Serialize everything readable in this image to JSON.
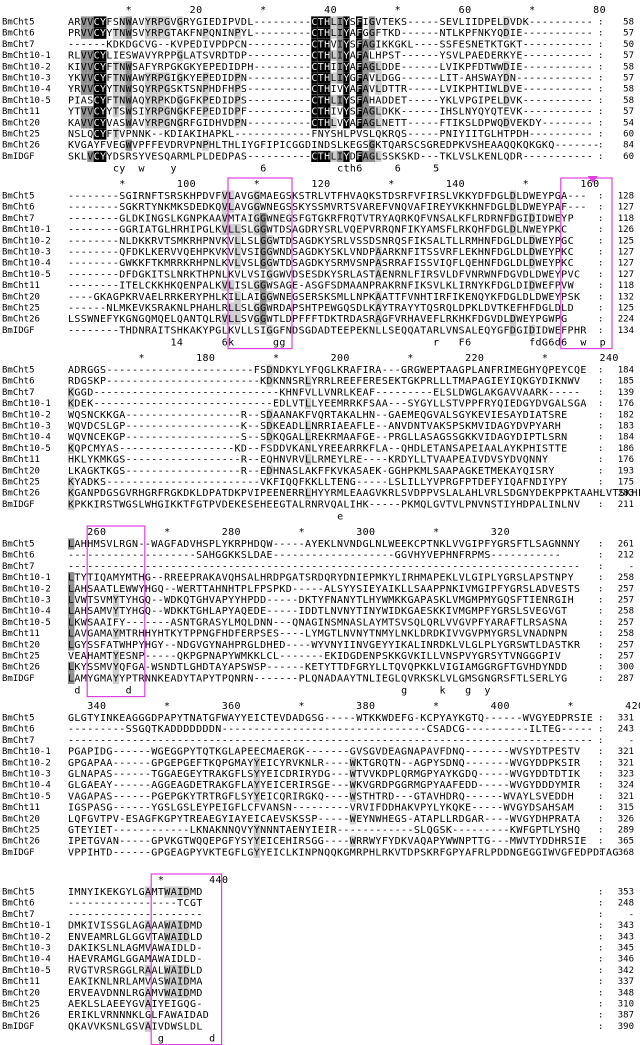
{
  "names": [
    "BmCht5",
    "BmCht6",
    "BmCht7",
    "BmCht10-1",
    "BmCht10-2",
    "BmCht10-3",
    "BmCht10-4",
    "BmCht10-5",
    "BmCht11",
    "BmCht20",
    "BmCht25",
    "BmCht26",
    "BmIDGF"
  ],
  "separator": ":",
  "blocks": [
    {
      "ruler": "         *         20         *         40         *         60         *         80",
      "rows": [
        "ARVVCYFSNWAVYRPGVGRYGIEDIPVDL---------CTHLIYSFIGVTEKS-----SEVLIIDPELDVDK----------",
        "PRVVCYYTNWSVYRPGTAKFNPQNINPYL---------CTHLIYAFGGFTKD------NTLKPFNKYQDIE-----------",
        "------KDKDGCVG--KVPEDIVPDPCN----------CTHVIYSFAGIKKGKL----SSFESNETKTGKT-----------",
        "RLVVCYLIESWAVYRPPGLATSVRDTDP----------CTHLIYAFALHPST------YSVLPAEDERKYE-----------",
        "KIVVCYFTNWSAFYRPGKGKYEPEDIDPH---------CTHIIYAFAGLDDE------LVIKPFDTWWDIE-----------",
        "YKVVCYFTNWAWYRPGIGKYEPEDIDPN----------CTHLIYGFAVLDGG------LIT-AHSWAYDN------------",
        "YRVVCYYTNWSQYRPGSKTSNPHDFHPS----------CTHIVYAFAVLDTTR-----LVIKPHTIWLDVE-----------",
        "PIASCYFTNWAQYRPKDGGFKPEDIDPS----------CTHLIYSFAHADDET-----YKLVPGIPELDVK-----------",
        "YTVVCYYTSWSIYRPGNGKFEPEDIDPF----------CTHIVYSFAGLDKK------IHSLNYQYQTEVK-----------",
        "KAVVCYVASWAVYRPGNGRFGIDHVDPN----------CTHLVYAFAGLNETT-----FTIKSLDPWQDVEKDY--------",
        "NSLQCYFTVPNNK--KDIAKIHAPKL------------FNYSHLPVSLQKRQS-----PNIYIITGLHTPDH----------",
        "KVGAYFVEGWVPFFEVDRVPNPHLTHLIYGFIPICGGDINDSLKEGSGKTQARSCSGREDPKVSHEAAQQKQKGKQ-------",
        "SKLVCYYDSRSYVESQARMLPLDEDPAS----------CTHLIYDFAGLSSKSKD---TKLVSLKENLQDR-----------"
      ],
      "ends": [
        58,
        57,
        50,
        57,
        58,
        57,
        58,
        58,
        57,
        54,
        60,
        84,
        60
      ],
      "consensus": "       cy  w    y             6           cth6     6     5"
    },
    {
      "ruler": "        *        100         *        120         *        140         *        160",
      "rows": [
        "--------SGIRNFTSRSKHPDVFVLAVGGMAEGSKSTRLVTFHVAQKSTDSRFVFIRSLVKKYDFDGLDLDWEYPGA---",
        "--------SGKRTYNKMKSDEDKQVLAVGGWNEGSSKYSSMVRTSVAREFVNQVAFIREYVKKHNFDGLDLDWEYPAF---",
        "--------GLDKINGSLKGNPKAAVMTAIGGWNEGSFGTGKRFRQTVTRYAQRKQFVNSALKFLRDRNFDGIDIDWEYP",
        "--------GGRIATGLHRHIPGLKVLLSLGGWTDSAGDRYSRLVQEPVRRQNFIKYAMSFLRKQHFDGLDLNWEYPKC",
        "--------NLDKKRVTSMKRHPNVKVLLSLGGWTDSAGDKYSRLVSSDSNRQSFIKSALTLLRMHNFDGLDLDWEYPGC",
        "--------QFDKLKERVVQEHPKVKVLVSIGGWNDSAGDKYSKLVNDPAARKNFITSSVRFLEKHNFDGLDLDWEYPKC",
        "--------GWKKFTKMRRKRHPNLKVLVSLGGWTDSAGDKYSRMVSNPASRRAFISSVIQFLQEHNFDGLDLDWEYPKC",
        "--------DFDGKITSLNRKTHPNLKVLVSIGGWVDSESDKYSRLASTAENRNLFIRSVLDFVNRWNFDGVDLDWEYPVC",
        "--------ITELCKKHKQENPALKVLISLGGWSAGE-ASGFSDMAANPRAKRNFIKSVLKLIRNYKFDGLDIDWEFPVW",
        "----GKAGPKRVAELRRKERYPHLKILLAIGGWNEGSERSKSMLLNPKAATTFVNHTIRFIKENQYKFDGLDLDWEYPSK",
        "------NLMKEVKSRAKNLPHAHLRLLSLGGWRDAPSHTPEWGQSDLKAYTRAYYTQSRQLDPKLDVTKEFHFDGLDLD",
        "LSSWNEFYKGNGQMQELQANTQLRVLLSVGGWTLDPFFFTDKTRDASRAGFVRHAVEFLRKHKFDGVDLDWEYPGWPG",
        "--------THDNRAITSHKAKYPGLKVLLSIGGFNDSGDADTEEPEKNLLSEQQATARLVNSALEQYGFDGIDIDWEFPHR"
      ],
      "ends": [
        128,
        127,
        118,
        126,
        125,
        127,
        127,
        127,
        118,
        132,
        125,
        224,
        134
      ],
      "consensus": "                14      6k      gg                       r   F6         fdG6d6  w  p"
    },
    {
      "ruler": "           *        180         *        200         *        220         *        240",
      "rows": [
        "ADRGGS-----------------------FSDNDKYLYFQGLKRAFIRA---GRGWEPTAAGPLANFRIMEGHYQPEYCQE",
        "RDGSKP------------------------KDKNNSRLYRRLREEFERESEKTGKPRLLLTMAPAGIEYIQKGYDIKNWV",
        "KGGD-----------------------------KHNFVLLVNRLKEAF---------ELSLDWGLAKGAVVAARK-----",
        "KDEK----------------------------EDLVTLLYEEMRRKFSAA---SYGYLLSTVPPFRYQIEDGYDVGALSGA",
        "WQSNCKKGA------------------R--SDAANAKFVQRTAKALHN--GAEMEQGVALSGYKEVIESAYDIATSRE",
        "WQVDCSLGP------------------K--SDKEADLLNRRIAEAFLE--ANVDNTVAKSPSKMVIDAGYDVPYARH",
        "WQVNCEKGP------------------S--SDKQGALLREKRMAAFGE--PRGLLASAGSSGKKVIDAGYDIPTLSRN",
        "KQPCMYAS------------------KD--FSDDVKANLYREEARRKFLA--QHDLETANSAPEIAALAYKPHISTTE",
        "HKLYKMKGS------------------R--EQHNVRVLLRMEYLRE----KRDYLLTVAAPEAIVDVSYDVQNNY",
        "LKAGKTKGS------------------R--EDHNASLAKFFKVKASAEK-GGHPKMLSAAPAGKETMEKAYQISRY",
        "KYADKS------------------------VKFIQQFKKLLTENG-----LSLILLYVPRGFPTDEFYIQAFNDIYPY",
        "KGANPDGSGVRHGRFRGKDKLDPATDKPVIPEENERRLHYYRMLEAAGVKRLSVDPPVSLALAHLVRLSDGNYDEKPPKTAAHLVTSKHLRD",
        "KPKKIRSTWGSLWHGIKKTFGTPVDEKESEHEEGTALRNRVQALIHK-----PKMQLGVTVLPNVNSTIYHDPALINLNV"
      ],
      "ends": [
        184,
        185,
        139,
        176,
        182,
        183,
        184,
        186,
        176,
        193,
        175,
        283,
        211
      ],
      "consensus": "                                          e"
    },
    {
      "ruler": "   260         *        280         *        300         *        320",
      "rows": [
        "LAHHMSVLRGN--WAGFADVHSPLYKRPHDQW-----AYEKLNVNDGLNLWEEKCPTNKLVVGIPFYGRSFTLSAGNNNY",
        "--------------------SAHGGKKSLDAE-------------------GGVHYVEPHNFRPMS-----------",
        "--------------------------------------------------------------------------------",
        "LTYTIQAMYMTHG--RREEPRAKAVQHSALHRDPGATSRDQRYDNIEPMKYLIRHMAPEKLVLGIPLYGRSLAPSTNPY",
        "LAHSAATLEWWYHGQ--WERTTAHNHTPLFPSPKD-----ALSYYSIEYAIKLLSAAPPNKIVMGIPFYGRSLADVESTS",
        "LVWTSVMYTYHGQ--WDKQTGHVAPYYHPDD-----DKTYFNANYTLHYWMKKGAPASKLVMGMPMYGQSFTIENRGIH",
        "LAHSAMVYTYHGQ--WDKKTGHLAPYAQEDE-----IDDTLNVNYTINYWIDKGAESKKIVMGMPFYGRSLSVEGVGT",
        "LKWSAAIFY-------ASNTGRASYLMQLDNN---QNAGINSMNASLAYMTSVSQLQRLVVGVPFYARAFTLRSASNA",
        "LAVGAMAYMTRHHYHTKYTPPNGFHDFERPSES----LYMGTLNVNYTNMYLNKLDRDKIVVGVPMYGRSLVNADNPN",
        "LGYSSFATWHPYHGY--NDGVGYNAHPRGLDHED----WYVNYIINVGEYYIKALINRDKLVLGLPLYGRSWTLDASTKR",
        "VEAHAMTYESNP-----QKPGPNAPYWMKKLCL-------EKIDGDENPSKKGVKILLVNSPVYGRSYTVNGGGPIV",
        "LKYSSMVYQFGA-WSNDTLGHDTAYAPSWSP------KETYTTDFGRYLLTQVQPKKLVIGIAMGGRGFTGVHDYNDD",
        "LAMYGMAYYPTRNNKEADYTAPYTPQNRN-------PLQNADAAYTNLIEGLQVRKSKLVLGMSGNGRSFTLSERLYG"
      ],
      "ends": [
        261,
        212,
        "-",
        258,
        257,
        257,
        258,
        257,
        258,
        257,
        257,
        300,
        287
      ],
      "consensus": " d       d                                          g     k   g  y"
    },
    {
      "ruler": "   340         *        360         *        380         *        400         *        420",
      "rows": [
        "GLGTYINKEAGGGDPAPYTNATGFWAYYEICTEVDADGSG-----WTKKWDEFG-KCPYAYKGTQ------WVGYEDPRSIE",
        "---------SSGQTKADDDDDDDN--------------------------------CSADCG----------ILTEG-----",
        "----------------------------------------------------------------------------------",
        "PGAPIDG------WGEGGPYTQTKGLAPEECMAERGK-------GVSGVDEAGNAPAVFDNQ-------WVSYDTPESTV",
        "GPGAPAA------GPGEPGEFTKQPGMAYYEICYRVKNLR----WKTGRQTN--AGPYSDNQ-------WVGYDDPKSIR",
        "GLNAPAS------TGGAEGEYTRAKGFLSYYEICDRIRYDG---WTVVKDPLQRMGPYAYKGDQ-----WVGYDDTDTIK",
        "GLGAEAY------AGGEAGDETRAKGFLAYYEICERIRSGE---WKVGRDPGGRMGPYAAFEDD-----WVGYDDDYMIR",
        "VAGAPAS------PGEPGKYTRTRGFLSYYEICQRIRGKQ----WSTHTRD---GTAVHDRQ------WVAYLSVEDDH",
        "IGSPASG------YGSLGSLEYPEIGFLCFVANSN---------VRVIFDDHAKVPYLYKQKE-----WVGYDSAHSAM",
        "LQFGVTPV-ESAGFKGPYTREAEGYIAYEICAEVSKSSP-----WEYNWHEGS-ATAPLLRDGAR----WVGYDHPRATA",
        "GTEYIET------------LKNAKNNQVYYNNNTAENYIEIR------------SLQGSK---------KWFGPTLYSHQ",
        "IPETGVAN-----GPVKGTWQQEPGFYSYYEICEHIRSGG----WRRWYFYDKVAQAPYWWNPTTG---MWVTYDDHRSIE",
        "VPPIHTD------GPGEAGPYVKTEGFLGYYEICLKINPNQQKGMRPHLRKVTDPSKRFGPYAFRLPDDNGEGGIWVGFEDPDTAG"
      ],
      "ends": [
        331,
        243,
        "-",
        321,
        321,
        323,
        324,
        321,
        315,
        326,
        289,
        365,
        368
      ],
      "consensus": ""
    },
    {
      "ruler": "              *       440",
      "rows": [
        "IMNYIKEKGYLGAMTWAIDMD",
        "-----------------TCGT",
        "---------------------",
        "DMKIVISSGLAGAAAWAIDMD",
        "ENVEAMRLGLGGVTAWAIDLD",
        "DAKIKSLNLAGMVAWAIDLD-",
        "HAEVRAMGLGGAMAWAIDLD-",
        "RVGTVRSRGGLRAALWAIDLD",
        "EAKIKNLNRLAMVASWAIDMA",
        "ERVEAVDNNLRGAMVWAIDMD",
        "AEKLSLAEEYGVAIYEIGQG-",
        "ERIKLVRNNNKLGLFAWAIDAD",
        "QKAVVKSNLGSVAIVDWSLDL"
      ],
      "ends": [
        353,
        248,
        "-",
        343,
        343,
        345,
        346,
        342,
        337,
        348,
        310,
        387,
        390
      ],
      "consensus": "              g       d"
    }
  ]
}
